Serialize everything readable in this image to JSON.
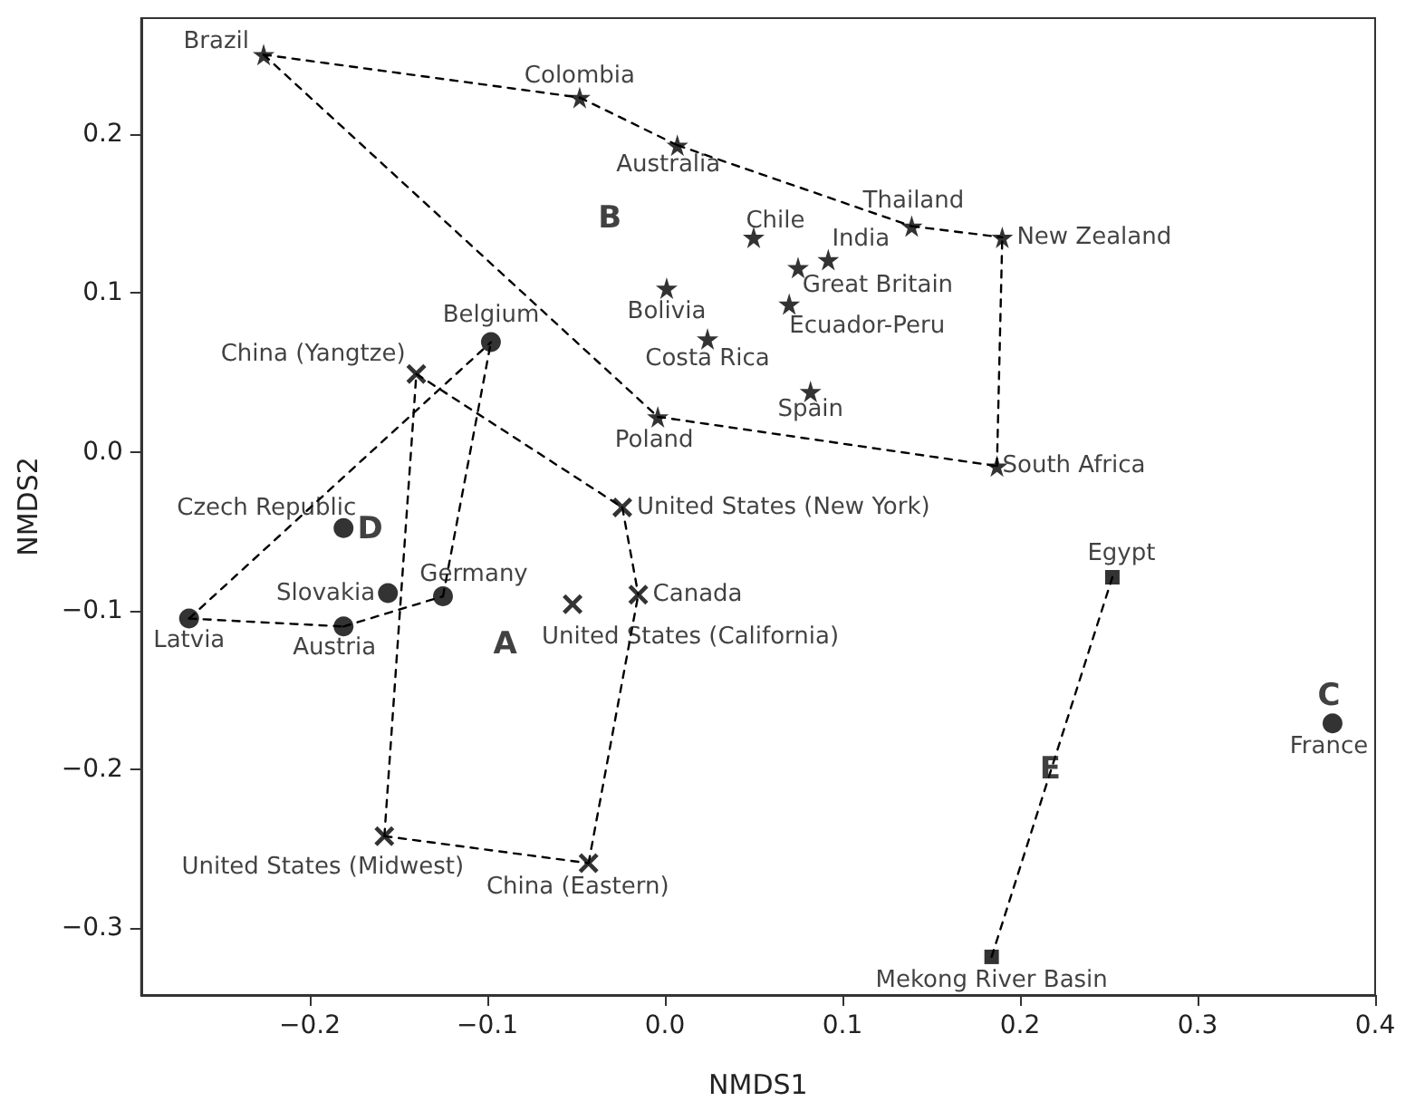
{
  "chart_data": {
    "type": "scatter",
    "xlabel": "NMDS1",
    "ylabel": "NMDS2",
    "xlim": [
      -0.295,
      0.4
    ],
    "ylim": [
      -0.342,
      0.273
    ],
    "xticks": [
      {
        "value": -0.2,
        "label": "−0.2"
      },
      {
        "value": -0.1,
        "label": "−0.1"
      },
      {
        "value": 0,
        "label": "0.0"
      },
      {
        "value": 0.1,
        "label": "0.1"
      },
      {
        "value": 0.2,
        "label": "0.2"
      },
      {
        "value": 0.3,
        "label": "0.3"
      },
      {
        "value": 0.4,
        "label": "0.4"
      }
    ],
    "yticks": [
      {
        "value": -0.3,
        "label": "−0.3"
      },
      {
        "value": -0.2,
        "label": "−0.2"
      },
      {
        "value": -0.1,
        "label": "−0.1"
      },
      {
        "value": 0,
        "label": "0.0"
      },
      {
        "value": 0.1,
        "label": "0.1"
      },
      {
        "value": 0.2,
        "label": "0.2"
      }
    ],
    "grid": false,
    "series": [
      {
        "type": "line",
        "color": "#000000",
        "line_style": "dashed",
        "marker": "none",
        "x": [
          -0.226,
          -0.048
        ],
        "values": [
          0.25,
          0.223
        ]
      },
      {
        "type": "line",
        "color": "#000000",
        "line_style": "dashed",
        "marker": "none",
        "x": [
          -0.048,
          0.007
        ],
        "values": [
          0.223,
          0.193
        ]
      },
      {
        "type": "line",
        "color": "#000000",
        "line_style": "dashed",
        "marker": "none",
        "x": [
          0.007,
          0.139
        ],
        "values": [
          0.193,
          0.142
        ]
      },
      {
        "type": "line",
        "color": "#000000",
        "line_style": "dashed",
        "marker": "none",
        "x": [
          0.139,
          0.19
        ],
        "values": [
          0.142,
          0.135
        ]
      },
      {
        "type": "line",
        "color": "#000000",
        "line_style": "dashed",
        "marker": "none",
        "x": [
          0.187,
          0.19
        ],
        "values": [
          -0.009,
          0.135
        ]
      },
      {
        "type": "line",
        "color": "#000000",
        "line_style": "dashed",
        "marker": "none",
        "x": [
          -0.004,
          0.187
        ],
        "values": [
          0.022,
          -0.009
        ]
      },
      {
        "type": "line",
        "color": "#000000",
        "line_style": "dashed",
        "marker": "none",
        "x": [
          -0.226,
          -0.004
        ],
        "values": [
          0.25,
          0.022
        ]
      },
      {
        "type": "line",
        "color": "#000000",
        "line_style": "dashed",
        "marker": "none",
        "x": [
          -0.14,
          -0.024
        ],
        "values": [
          0.049,
          -0.035
        ]
      },
      {
        "type": "line",
        "color": "#000000",
        "line_style": "dashed",
        "marker": "none",
        "x": [
          -0.024,
          -0.015
        ],
        "values": [
          -0.035,
          -0.09
        ]
      },
      {
        "type": "line",
        "color": "#000000",
        "line_style": "dashed",
        "marker": "none",
        "x": [
          -0.043,
          -0.015
        ],
        "values": [
          -0.259,
          -0.09
        ]
      },
      {
        "type": "line",
        "color": "#000000",
        "line_style": "dashed",
        "marker": "none",
        "x": [
          -0.158,
          -0.043
        ],
        "values": [
          -0.242,
          -0.259
        ]
      },
      {
        "type": "line",
        "color": "#000000",
        "line_style": "dashed",
        "marker": "none",
        "x": [
          -0.158,
          -0.14
        ],
        "values": [
          -0.242,
          0.049
        ]
      },
      {
        "type": "line",
        "color": "#000000",
        "line_style": "dashed",
        "marker": "none",
        "x": [
          -0.268,
          -0.098
        ],
        "values": [
          -0.105,
          0.069
        ]
      },
      {
        "type": "line",
        "color": "#000000",
        "line_style": "dashed",
        "marker": "none",
        "x": [
          -0.125,
          -0.098
        ],
        "values": [
          -0.091,
          0.069
        ]
      },
      {
        "type": "line",
        "color": "#000000",
        "line_style": "dashed",
        "marker": "none",
        "x": [
          -0.181,
          -0.125
        ],
        "values": [
          -0.11,
          -0.091
        ]
      },
      {
        "type": "line",
        "color": "#000000",
        "line_style": "dashed",
        "marker": "none",
        "x": [
          -0.268,
          -0.181
        ],
        "values": [
          -0.105,
          -0.11
        ]
      },
      {
        "type": "line",
        "color": "#000000",
        "line_style": "dashed",
        "marker": "none",
        "x": [
          0.184,
          0.252
        ],
        "values": [
          -0.318,
          -0.079
        ]
      },
      {
        "color": "#000000",
        "marker": "star",
        "x": [
          -0.226,
          -0.048,
          0.007,
          0.05,
          0.092,
          0.075,
          0.139,
          0.19,
          0.07,
          0.001,
          0.024,
          0.082,
          -0.004,
          0.187
        ],
        "values": [
          0.25,
          0.223,
          0.193,
          0.135,
          0.121,
          0.116,
          0.142,
          0.135,
          0.093,
          0.103,
          0.071,
          0.038,
          0.022,
          -0.009
        ]
      },
      {
        "color": "#000000",
        "marker": "cross",
        "x": [
          -0.14,
          -0.024,
          -0.052,
          -0.015,
          -0.158,
          -0.043
        ],
        "values": [
          0.049,
          -0.035,
          -0.096,
          -0.09,
          -0.242,
          -0.259
        ]
      },
      {
        "color": "#000000",
        "marker": "circle",
        "x": [
          -0.098,
          -0.181,
          -0.156,
          -0.125,
          -0.268,
          -0.181
        ],
        "values": [
          0.069,
          -0.048,
          -0.089,
          -0.091,
          -0.105,
          -0.11
        ]
      },
      {
        "color": "#000000",
        "marker": "circle",
        "x": [
          0.376
        ],
        "values": [
          -0.171
        ]
      },
      {
        "color": "#000000",
        "marker": "square",
        "x": [
          0.252,
          0.184
        ],
        "values": [
          -0.079,
          -0.318
        ]
      }
    ],
    "annotations": [
      {
        "text": "Brazil",
        "x": -0.226,
        "y": 0.25
      },
      {
        "text": "Colombia",
        "x": -0.048,
        "y": 0.223
      },
      {
        "text": "Australia",
        "x": 0.007,
        "y": 0.193
      },
      {
        "text": "Chile",
        "x": 0.05,
        "y": 0.135
      },
      {
        "text": "India",
        "x": 0.092,
        "y": 0.121
      },
      {
        "text": "Great Britain",
        "x": 0.075,
        "y": 0.116
      },
      {
        "text": "Thailand",
        "x": 0.139,
        "y": 0.142
      },
      {
        "text": "New Zealand",
        "x": 0.19,
        "y": 0.135
      },
      {
        "text": "Ecuador-Peru",
        "x": 0.07,
        "y": 0.093
      },
      {
        "text": "Bolivia",
        "x": 0.001,
        "y": 0.103
      },
      {
        "text": "Costa Rica",
        "x": 0.024,
        "y": 0.071
      },
      {
        "text": "Spain",
        "x": 0.082,
        "y": 0.038
      },
      {
        "text": "Poland",
        "x": -0.004,
        "y": 0.022
      },
      {
        "text": "South Africa",
        "x": 0.187,
        "y": -0.009
      },
      {
        "text": "Belgium",
        "x": -0.098,
        "y": 0.069
      },
      {
        "text": "China (Yangtze)",
        "x": -0.14,
        "y": 0.049
      },
      {
        "text": "United States (New York)",
        "x": -0.024,
        "y": -0.035
      },
      {
        "text": "Czech Republic",
        "x": -0.181,
        "y": -0.048
      },
      {
        "text": "Slovakia",
        "x": -0.156,
        "y": -0.089
      },
      {
        "text": "Germany",
        "x": -0.125,
        "y": -0.091
      },
      {
        "text": "Latvia",
        "x": -0.268,
        "y": -0.105
      },
      {
        "text": "Austria",
        "x": -0.181,
        "y": -0.11
      },
      {
        "text": "United States (California)",
        "x": -0.052,
        "y": -0.096
      },
      {
        "text": "Canada",
        "x": -0.015,
        "y": -0.09
      },
      {
        "text": "United States (Midwest)",
        "x": -0.158,
        "y": -0.242
      },
      {
        "text": "China (Eastern)",
        "x": -0.043,
        "y": -0.259
      },
      {
        "text": "Egypt",
        "x": 0.252,
        "y": -0.079
      },
      {
        "text": "Mekong River Basin",
        "x": 0.184,
        "y": -0.318
      },
      {
        "text": "France",
        "x": 0.376,
        "y": -0.171
      },
      "B",
      "D",
      "A",
      "C",
      "E"
    ]
  }
}
